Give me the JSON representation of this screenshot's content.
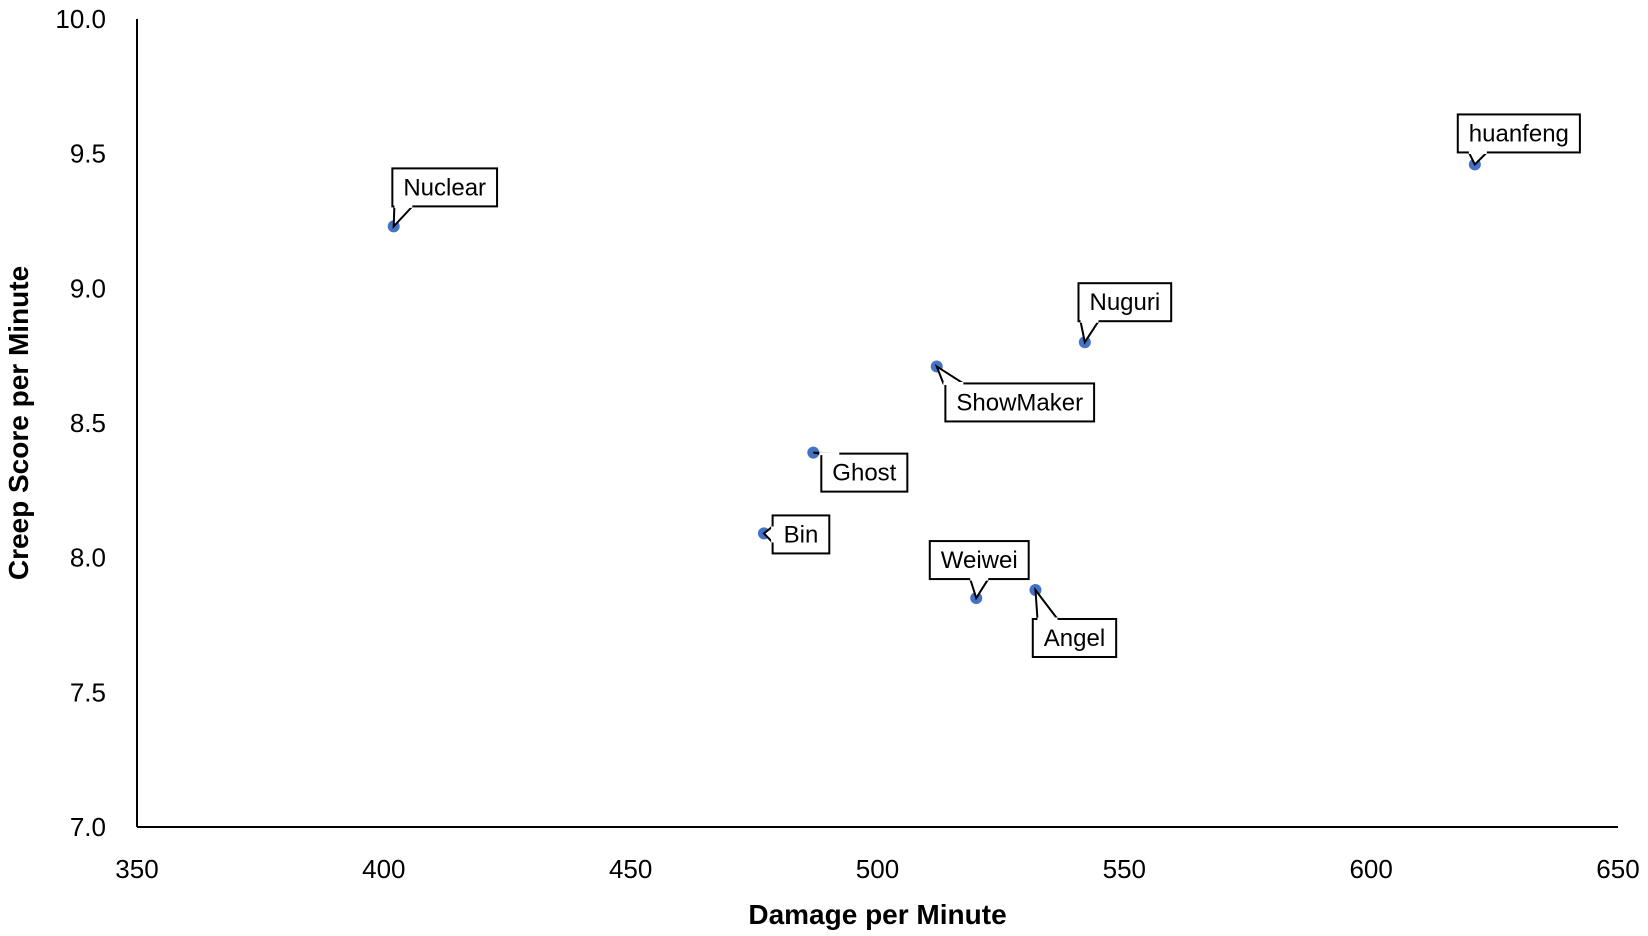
{
  "chart_data": {
    "type": "scatter",
    "title": "",
    "xlabel": "Damage per Minute",
    "ylabel": "Creep Score per Minute",
    "xlim": [
      350,
      650
    ],
    "ylim": [
      7.0,
      10.0
    ],
    "x_ticks": [
      350,
      400,
      450,
      500,
      550,
      600,
      650
    ],
    "y_ticks": [
      7.0,
      7.5,
      8.0,
      8.5,
      9.0,
      9.5,
      10.0
    ],
    "grid": false,
    "marker_color": "#4472C4",
    "points": [
      {
        "label": "Nuclear",
        "x": 402,
        "y": 9.23
      },
      {
        "label": "huanfeng",
        "x": 621,
        "y": 9.46
      },
      {
        "label": "Nuguri",
        "x": 542,
        "y": 8.8
      },
      {
        "label": "ShowMaker",
        "x": 512,
        "y": 8.71
      },
      {
        "label": "Ghost",
        "x": 487,
        "y": 8.39
      },
      {
        "label": "Bin",
        "x": 477,
        "y": 8.09
      },
      {
        "label": "Weiwei",
        "x": 520,
        "y": 7.85
      },
      {
        "label": "Angel",
        "x": 532,
        "y": 7.88
      }
    ]
  }
}
